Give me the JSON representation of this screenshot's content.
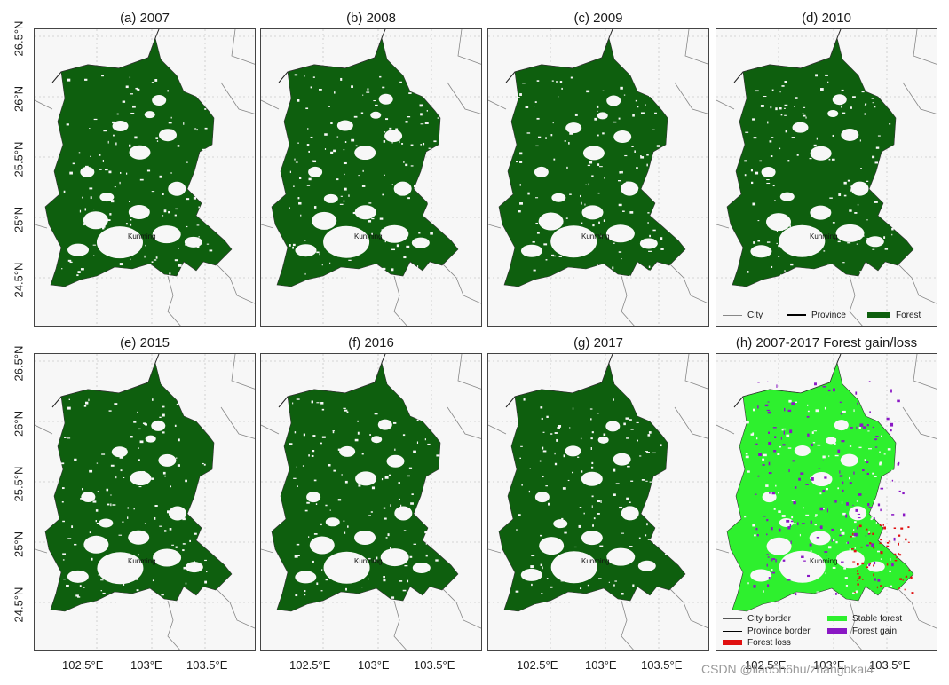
{
  "panels": [
    {
      "title": "(a) 2007",
      "mode": "forest"
    },
    {
      "title": "(b) 2008",
      "mode": "forest"
    },
    {
      "title": "(c) 2009",
      "mode": "forest"
    },
    {
      "title": "(d) 2010",
      "mode": "forest"
    },
    {
      "title": "(e) 2015",
      "mode": "forest"
    },
    {
      "title": "(f) 2016",
      "mode": "forest"
    },
    {
      "title": "(g) 2017",
      "mode": "forest"
    },
    {
      "title": "(h) 2007-2017 Forest gain/loss",
      "mode": "change"
    }
  ],
  "center_label": "Kunming",
  "y_ticks": [
    "26.5°N",
    "26°N",
    "25.5°N",
    "25°N",
    "24.5°N"
  ],
  "x_ticks": [
    "102.5°E",
    "103°E",
    "103.5°E"
  ],
  "legend_top": {
    "city": "City",
    "province": "Province",
    "forest": "Forest"
  },
  "legend_bottom": {
    "city_border": "City border",
    "province_border": "Province border",
    "forest_loss": "Forest loss",
    "stable_forest": "Stable forest",
    "forest_gain": "Forest gain"
  },
  "colors": {
    "forest": "#0e5f0e",
    "stable_forest": "#2ef02e",
    "forest_gain": "#8a18c4",
    "forest_loss": "#e01010",
    "panel_bg": "#f7f7f7"
  },
  "watermark": "CSDN @liao5h6hu/zhangbkai4"
}
